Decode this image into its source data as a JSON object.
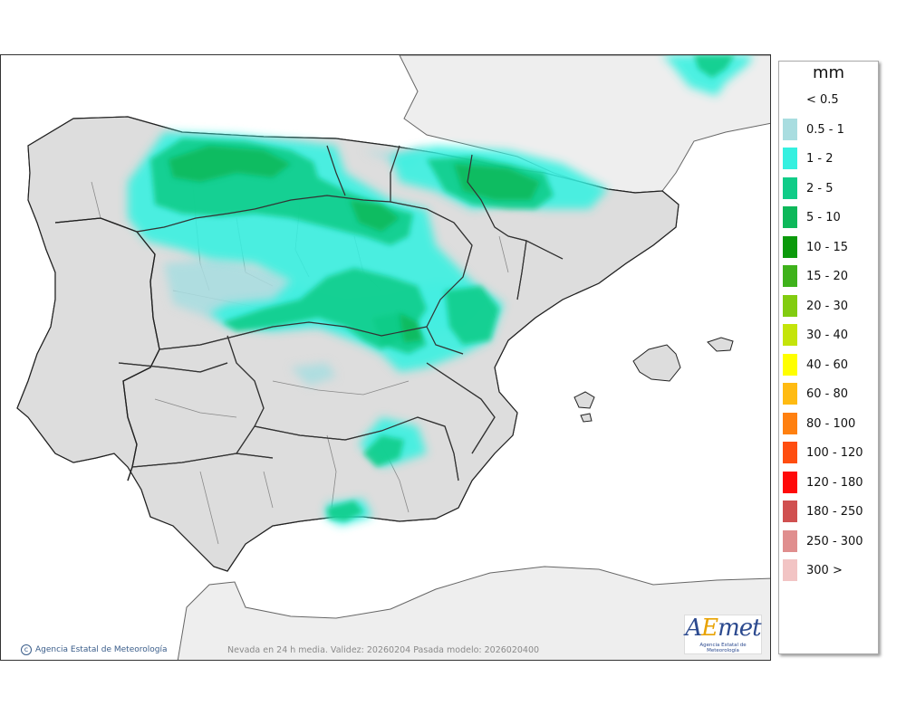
{
  "map": {
    "caption": "Nevada en 24 h media. Validez: 20260204 Pasada modelo: 2026020400",
    "credit": "Agencia Estatal de Meteorología",
    "logo_text": "AEmet",
    "logo_subtext": "Agencia Estatal de Meteorología",
    "colors": {
      "sea": "#ffffff",
      "land_foreign": "#eeeeee",
      "land_spain": "#dddddd",
      "border": "#222222",
      "province": "#888888"
    }
  },
  "legend": {
    "unit": "mm",
    "items": [
      {
        "label": "< 0.5",
        "color": ""
      },
      {
        "label": "0.5 - 1",
        "color": "#a9dde0"
      },
      {
        "label": "1 - 2",
        "color": "#35f0e0"
      },
      {
        "label": "2 - 5",
        "color": "#10cc88"
      },
      {
        "label": "5 - 10",
        "color": "#0db85a"
      },
      {
        "label": "10 - 15",
        "color": "#0b9a0b"
      },
      {
        "label": "15 - 20",
        "color": "#3fb21b"
      },
      {
        "label": "20 - 30",
        "color": "#82cc10"
      },
      {
        "label": "30 - 40",
        "color": "#c4e40a"
      },
      {
        "label": "40 - 60",
        "color": "#ffff00"
      },
      {
        "label": "60 - 80",
        "color": "#ffbb12"
      },
      {
        "label": "80 - 100",
        "color": "#ff8010"
      },
      {
        "label": "100 - 120",
        "color": "#ff4d10"
      },
      {
        "label": "120 - 180",
        "color": "#ff0a0a"
      },
      {
        "label": "180 - 250",
        "color": "#d05050"
      },
      {
        "label": "250 - 300",
        "color": "#e08e8e"
      },
      {
        "label": "300 >",
        "color": "#f2c4c4"
      }
    ]
  },
  "snow_areas": [
    {
      "name": "cantabrian-range",
      "level": "2 - 5"
    },
    {
      "name": "pyrenees",
      "level": "5 - 10"
    },
    {
      "name": "iberian-system",
      "level": "2 - 5"
    },
    {
      "name": "sistema-central",
      "level": "2 - 5"
    },
    {
      "name": "sierra-nevada",
      "level": "2 - 5"
    },
    {
      "name": "alps",
      "level": "2 - 5"
    }
  ]
}
